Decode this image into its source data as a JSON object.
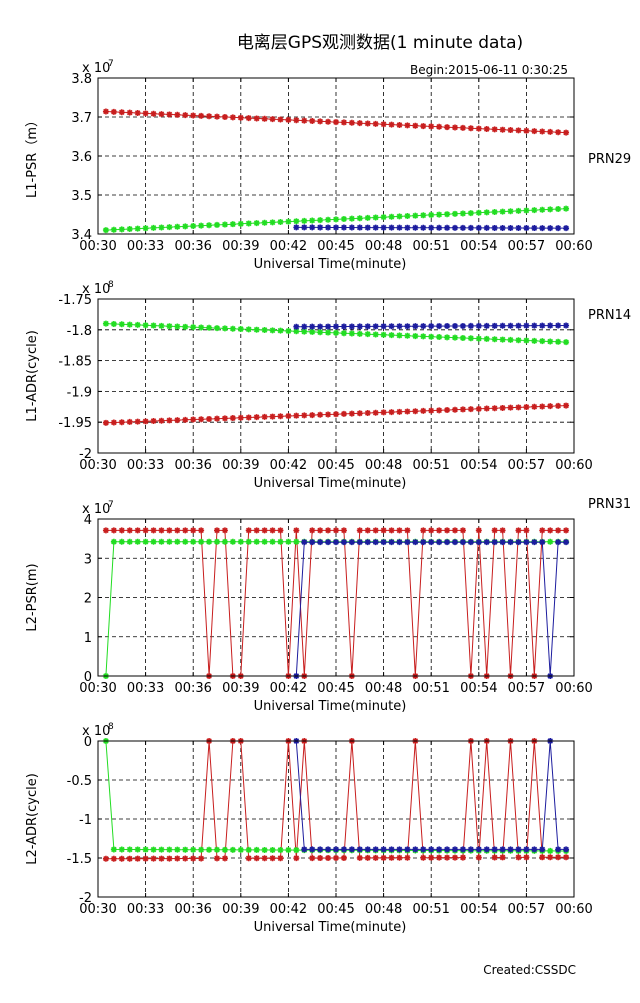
{
  "header": {
    "title": "电离层GPS观测数据(1 minute data)",
    "begin": "Begin:2015-06-11    0:30:25",
    "footer": "Created:CSSDC"
  },
  "legend": [
    {
      "name": "PRN29",
      "color": "#c81e1e"
    },
    {
      "name": "PRN14",
      "color": "#22dd22"
    },
    {
      "name": "PRN31",
      "color": "#1c1c9e"
    }
  ],
  "x_ticks": [
    "00:30",
    "00:33",
    "00:36",
    "00:39",
    "00:42",
    "00:45",
    "00:48",
    "00:51",
    "00:54",
    "00:57",
    "00:60"
  ],
  "chart_data": [
    {
      "type": "line",
      "ylabel": "L1-PSR（m）",
      "xlabel": "Universal Time(minute)",
      "exponent": "x 10",
      "exponent_power": "7",
      "xlim": [
        30,
        60
      ],
      "ylim": [
        3.4,
        3.8
      ],
      "y_ticks": [
        "3.4",
        "3.5",
        "3.6",
        "3.7",
        "3.8"
      ],
      "y_tick_values": [
        3.4,
        3.5,
        3.6,
        3.7,
        3.8
      ],
      "grid": true,
      "series": [
        {
          "name": "PRN29",
          "color": "#c81e1e",
          "x_start": 30.5,
          "x_end": 59.5,
          "y_start": 3.714,
          "y_end": 3.66
        },
        {
          "name": "PRN14",
          "color": "#22dd22",
          "x_start": 30.5,
          "x_end": 59.5,
          "y_start": 3.41,
          "y_end": 3.465
        },
        {
          "name": "PRN31",
          "color": "#1c1c9e",
          "x_start": 42.5,
          "x_end": 59.5,
          "y_start": 3.417,
          "y_end": 3.415
        }
      ]
    },
    {
      "type": "line",
      "ylabel": "L1-ADR(cycle)",
      "xlabel": "Universal Time(minute)",
      "exponent": "x 10",
      "exponent_power": "8",
      "xlim": [
        30,
        60
      ],
      "ylim": [
        -2.0,
        -1.75
      ],
      "y_ticks": [
        "-2",
        "-1.95",
        "-1.9",
        "-1.85",
        "-1.8",
        "-1.75"
      ],
      "y_tick_values": [
        -2.0,
        -1.95,
        -1.9,
        -1.85,
        -1.8,
        -1.75
      ],
      "grid": true,
      "series": [
        {
          "name": "PRN29",
          "color": "#c81e1e",
          "x_start": 30.5,
          "x_end": 59.5,
          "y_start": -1.951,
          "y_end": -1.923
        },
        {
          "name": "PRN14",
          "color": "#22dd22",
          "x_start": 30.5,
          "x_end": 59.5,
          "y_start": -1.79,
          "y_end": -1.82
        },
        {
          "name": "PRN31",
          "color": "#1c1c9e",
          "x_start": 42.5,
          "x_end": 59.5,
          "y_start": -1.795,
          "y_end": -1.793
        }
      ]
    },
    {
      "type": "line",
      "ylabel": "L2-PSR(m)",
      "xlabel": "Universal Time(minute)",
      "exponent": "x 10",
      "exponent_power": "7",
      "xlim": [
        30,
        60
      ],
      "ylim": [
        0,
        4
      ],
      "y_ticks": [
        "0",
        "1",
        "2",
        "3",
        "4"
      ],
      "y_tick_values": [
        0,
        1,
        2,
        3,
        4
      ],
      "grid": true,
      "series": [
        {
          "name": "PRN29",
          "color": "#c81e1e",
          "x_start": 30.5,
          "x_end": 59.5,
          "level": 3.71,
          "zero_x": [
            37,
            38.5,
            39,
            42,
            43,
            46,
            50,
            53.5,
            54.5,
            56,
            57.5
          ],
          "gap_x": []
        },
        {
          "name": "PRN14",
          "color": "#22dd22",
          "x_start": 30.5,
          "x_end": 59.5,
          "level": 3.42,
          "zero_x": [
            30.5
          ],
          "gap_x": []
        },
        {
          "name": "PRN31",
          "color": "#1c1c9e",
          "x_start": 42.5,
          "x_end": 59.5,
          "level": 3.41,
          "zero_x": [
            42.5,
            58.5
          ],
          "gap_x": []
        }
      ]
    },
    {
      "type": "line",
      "ylabel": "L2-ADR(cycle)",
      "xlabel": "Universal Time(minute)",
      "exponent": "x 10",
      "exponent_power": "8",
      "xlim": [
        30,
        60
      ],
      "ylim": [
        -2,
        0
      ],
      "y_ticks": [
        "-2",
        "-1.5",
        "-1",
        "-0.5",
        "0"
      ],
      "y_tick_values": [
        -2,
        -1.5,
        -1,
        -0.5,
        0
      ],
      "grid": true,
      "series": [
        {
          "name": "PRN29",
          "color": "#c81e1e",
          "x_start": 30.5,
          "x_end": 59.5,
          "level": -1.51,
          "level_end": -1.49,
          "zero_x": [
            37,
            38.5,
            39,
            42,
            43,
            46,
            50,
            53.5,
            54.5,
            56,
            57.5
          ]
        },
        {
          "name": "PRN14",
          "color": "#22dd22",
          "x_start": 30.5,
          "x_end": 59.5,
          "level": -1.39,
          "level_end": -1.41,
          "zero_x": [
            30.5
          ]
        },
        {
          "name": "PRN31",
          "color": "#1c1c9e",
          "x_start": 42.5,
          "x_end": 59.5,
          "level": -1.39,
          "level_end": -1.39,
          "zero_x": [
            42.5,
            58.5
          ]
        }
      ]
    }
  ]
}
